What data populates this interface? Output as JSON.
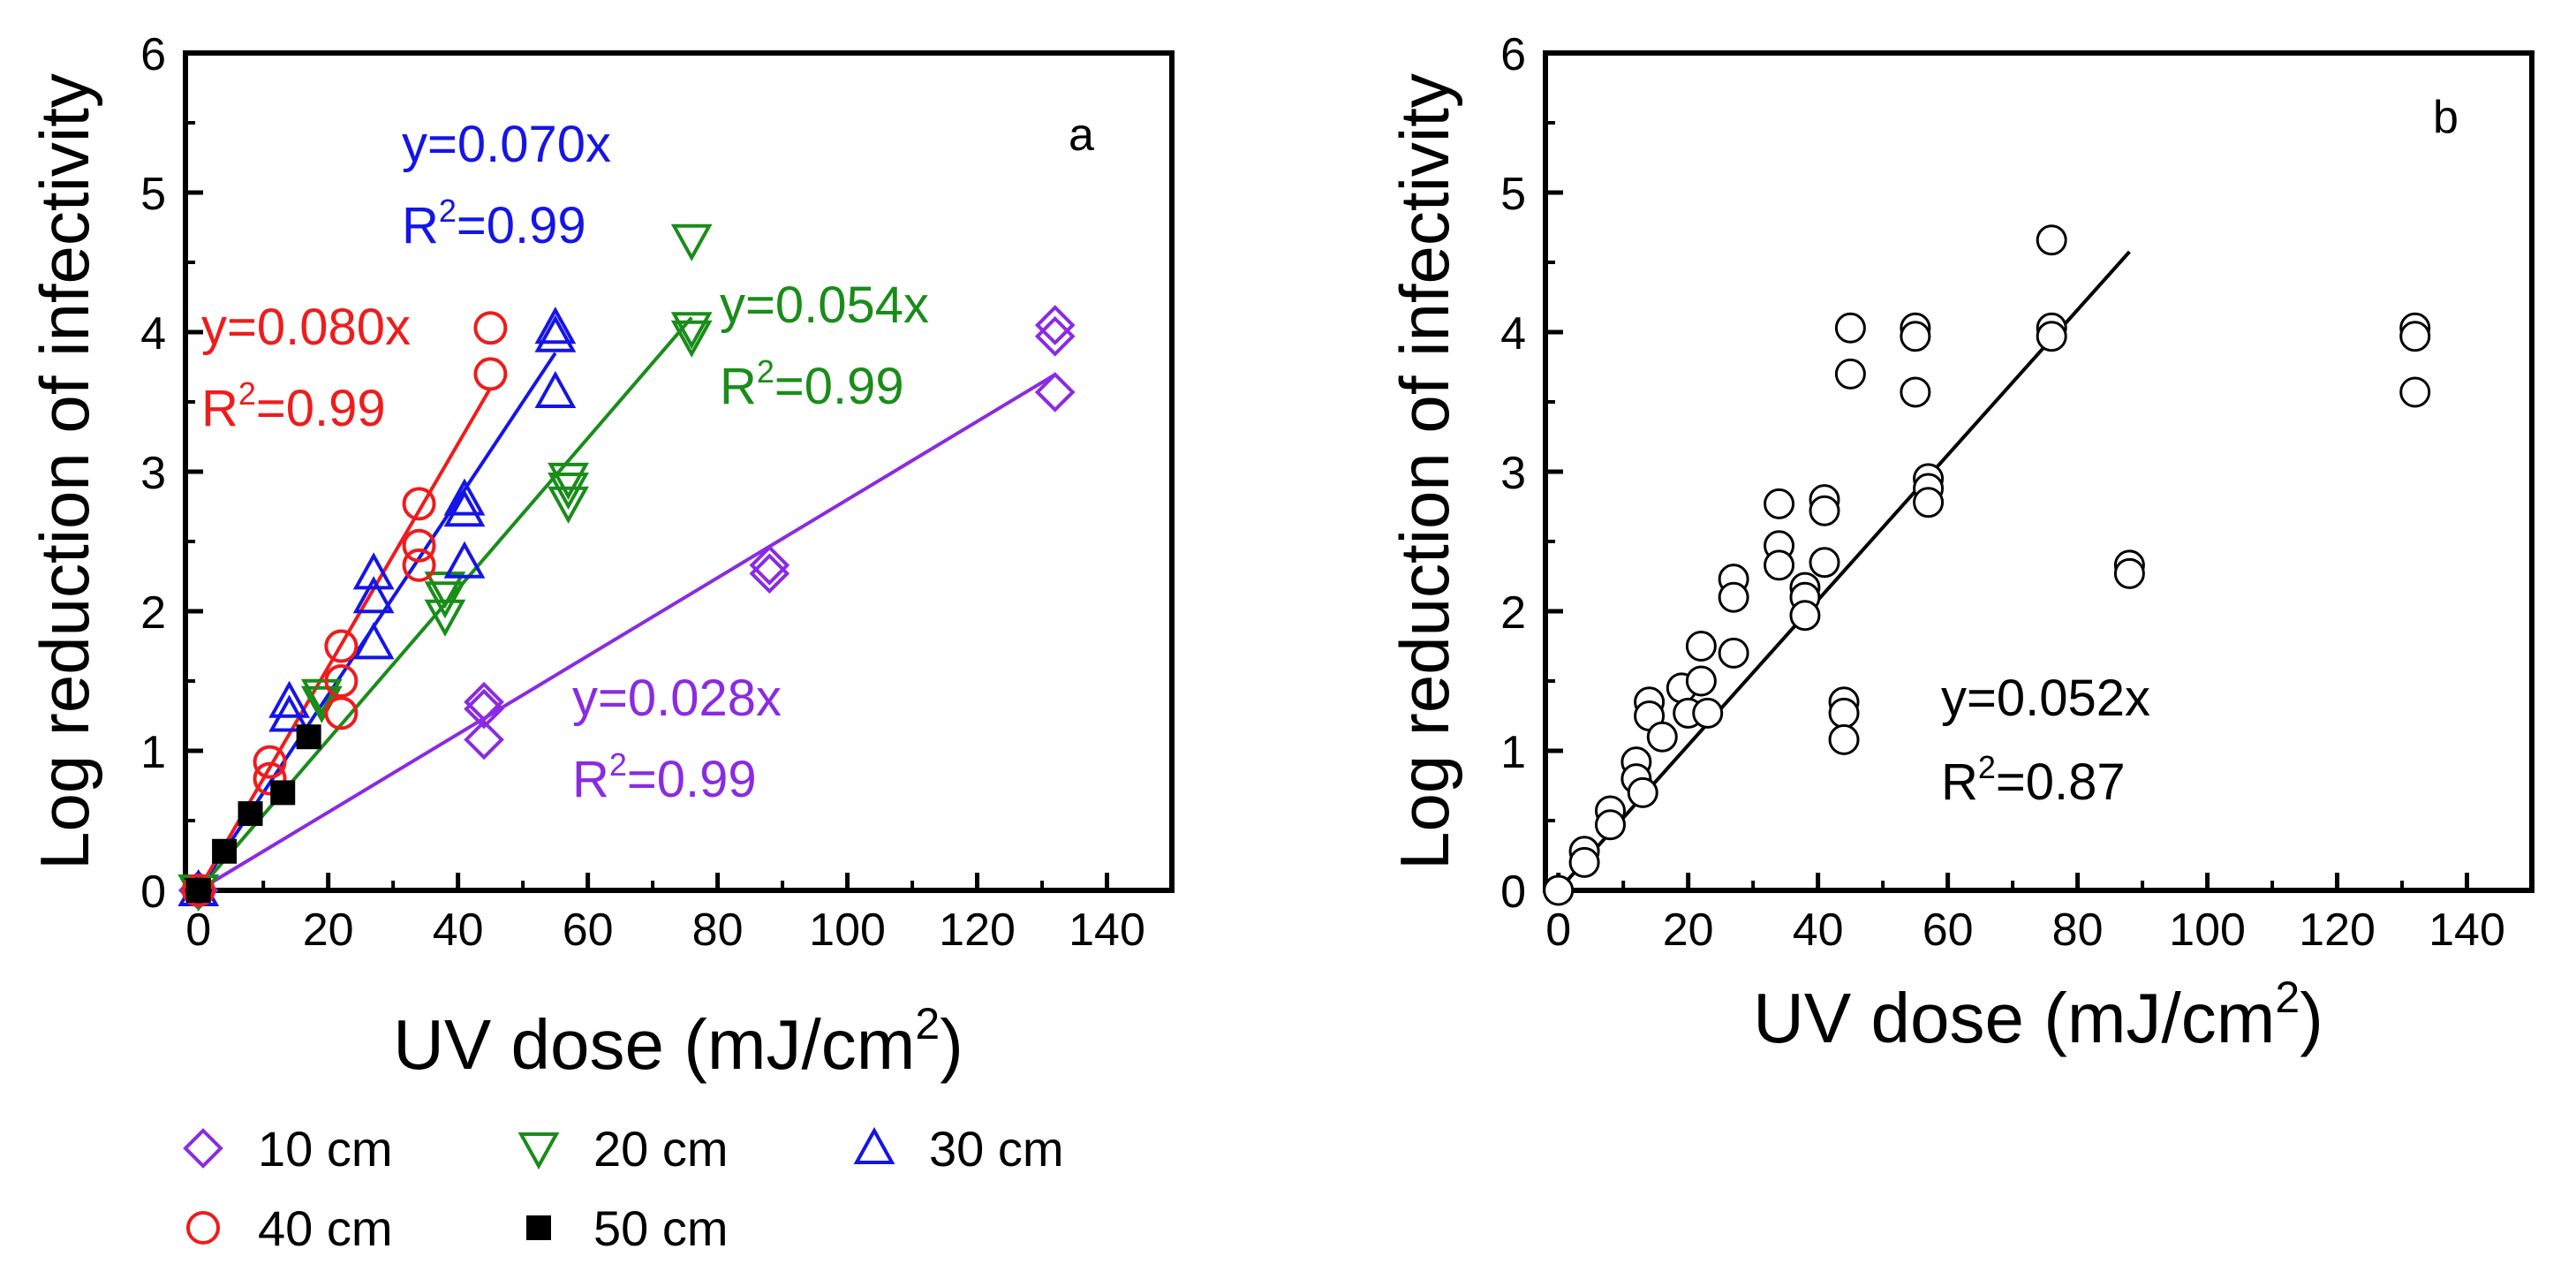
{
  "chart_data": [
    {
      "type": "scatter",
      "panel_label": "a",
      "xlabel": "UV dose (mJ/cm",
      "xlabel_sup": "2",
      "xlabel_tail": ")",
      "ylabel": "Log reduction of infectivity",
      "xlim": [
        -2,
        150
      ],
      "ylim": [
        0,
        6
      ],
      "xticks": [
        "0",
        "20",
        "40",
        "60",
        "80",
        "100",
        "120",
        "140"
      ],
      "yticks": [
        "0",
        "1",
        "2",
        "3",
        "4",
        "5",
        "6"
      ],
      "series": [
        {
          "name": "10 cm",
          "marker": "diamond",
          "color": "#8a2be2",
          "slope": 0.028,
          "fit_x": [
            0,
            132
          ],
          "equation": "y=0.028x",
          "r2_prefix": "R",
          "r2_sup": "2",
          "r2_value": "=0.99",
          "points": [
            [
              0,
              0
            ],
            [
              44,
              1.35
            ],
            [
              44,
              1.3
            ],
            [
              44,
              1.08
            ],
            [
              88,
              2.33
            ],
            [
              88,
              2.27
            ],
            [
              132,
              4.05
            ],
            [
              132,
              3.97
            ],
            [
              132,
              3.57
            ]
          ]
        },
        {
          "name": "20 cm",
          "marker": "triangle-down",
          "color": "#1a8c1a",
          "slope": 0.054,
          "fit_x": [
            0,
            76
          ],
          "equation": "y=0.054x",
          "r2_prefix": "R",
          "r2_sup": "2",
          "r2_value": "=0.99",
          "points": [
            [
              0,
              0
            ],
            [
              19,
              1.4
            ],
            [
              19,
              1.35
            ],
            [
              38,
              2.17
            ],
            [
              38,
              2.1
            ],
            [
              38,
              1.97
            ],
            [
              57,
              2.95
            ],
            [
              57,
              2.88
            ],
            [
              57,
              2.78
            ],
            [
              76,
              4.66
            ],
            [
              76,
              4.03
            ],
            [
              76,
              3.97
            ]
          ]
        },
        {
          "name": "30 cm",
          "marker": "triangle-up",
          "color": "#1515e6",
          "slope": 0.07,
          "fit_x": [
            0,
            55
          ],
          "equation": "y=0.070x",
          "r2_prefix": "R",
          "r2_sup": "2",
          "r2_value": "=0.99",
          "points": [
            [
              0,
              0
            ],
            [
              14,
              1.35
            ],
            [
              14,
              1.25
            ],
            [
              27,
              2.27
            ],
            [
              27,
              2.1
            ],
            [
              27,
              1.77
            ],
            [
              41,
              2.8
            ],
            [
              41,
              2.72
            ],
            [
              41,
              2.35
            ],
            [
              55,
              4.03
            ],
            [
              55,
              3.97
            ],
            [
              55,
              3.57
            ]
          ]
        },
        {
          "name": "40 cm",
          "marker": "circle",
          "color": "#ee1c1c",
          "slope": 0.08,
          "fit_x": [
            0,
            45
          ],
          "equation": "y=0.080x",
          "r2_prefix": "R",
          "r2_sup": "2",
          "r2_value": "=0.99",
          "points": [
            [
              0,
              0
            ],
            [
              11,
              0.92
            ],
            [
              11,
              0.8
            ],
            [
              22,
              1.75
            ],
            [
              22,
              1.5
            ],
            [
              22,
              1.27
            ],
            [
              34,
              2.77
            ],
            [
              34,
              2.47
            ],
            [
              34,
              2.33
            ],
            [
              45,
              4.03
            ],
            [
              45,
              3.7
            ]
          ]
        },
        {
          "name": "50 cm",
          "marker": "square",
          "color": "#000000",
          "slope": null,
          "equation": "",
          "points": [
            [
              0,
              0
            ],
            [
              4,
              0.28
            ],
            [
              8,
              0.55
            ],
            [
              13,
              0.7
            ],
            [
              17,
              1.1
            ]
          ]
        }
      ]
    },
    {
      "type": "scatter",
      "panel_label": "b",
      "xlabel": "UV dose (mJ/cm",
      "xlabel_sup": "2",
      "xlabel_tail": ")",
      "ylabel": "Log reduction of infectivity",
      "xlim": [
        -2,
        150
      ],
      "ylim": [
        0,
        6
      ],
      "xticks": [
        "0",
        "20",
        "40",
        "60",
        "80",
        "100",
        "120",
        "140"
      ],
      "yticks": [
        "0",
        "1",
        "2",
        "3",
        "4",
        "5",
        "6"
      ],
      "fit": {
        "slope": 0.052,
        "fit_x": [
          0,
          88
        ],
        "equation": "y=0.052x",
        "r2_prefix": "R",
        "r2_sup": "2",
        "r2_value": "=0.87"
      },
      "points": [
        [
          0,
          0
        ],
        [
          4,
          0.28
        ],
        [
          4,
          0.2
        ],
        [
          8,
          0.57
        ],
        [
          8,
          0.47
        ],
        [
          12,
          0.92
        ],
        [
          12,
          0.8
        ],
        [
          13,
          0.7
        ],
        [
          14,
          1.35
        ],
        [
          14,
          1.25
        ],
        [
          16,
          1.1
        ],
        [
          19,
          1.45
        ],
        [
          20,
          1.27
        ],
        [
          22,
          1.75
        ],
        [
          22,
          1.5
        ],
        [
          23,
          1.27
        ],
        [
          27,
          2.23
        ],
        [
          27,
          2.1
        ],
        [
          27,
          1.7
        ],
        [
          34,
          2.77
        ],
        [
          34,
          2.47
        ],
        [
          34,
          2.33
        ],
        [
          38,
          2.17
        ],
        [
          38,
          2.1
        ],
        [
          38,
          1.97
        ],
        [
          41,
          2.8
        ],
        [
          41,
          2.72
        ],
        [
          41,
          2.35
        ],
        [
          44,
          1.35
        ],
        [
          44,
          1.27
        ],
        [
          44,
          1.08
        ],
        [
          45,
          4.03
        ],
        [
          45,
          3.7
        ],
        [
          55,
          4.03
        ],
        [
          55,
          3.97
        ],
        [
          55,
          3.57
        ],
        [
          57,
          2.95
        ],
        [
          57,
          2.88
        ],
        [
          57,
          2.78
        ],
        [
          76,
          4.66
        ],
        [
          76,
          4.03
        ],
        [
          76,
          3.97
        ],
        [
          88,
          2.33
        ],
        [
          88,
          2.27
        ],
        [
          132,
          4.03
        ],
        [
          132,
          3.97
        ],
        [
          132,
          3.57
        ]
      ]
    }
  ]
}
